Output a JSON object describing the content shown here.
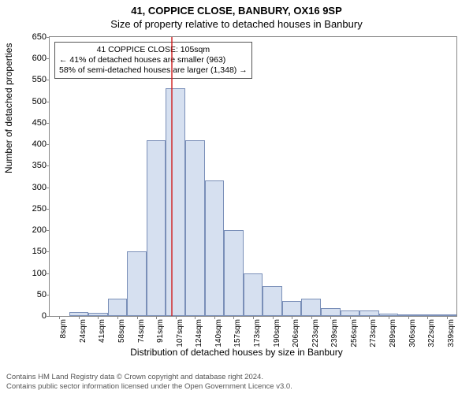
{
  "header": {
    "address": "41, COPPICE CLOSE, BANBURY, OX16 9SP",
    "subtitle": "Size of property relative to detached houses in Banbury"
  },
  "chart": {
    "type": "histogram",
    "ylabel": "Number of detached properties",
    "xlabel": "Distribution of detached houses by size in Banbury",
    "ylim": [
      0,
      650
    ],
    "ytick_step": 50,
    "bar_fill": "#d6e0f0",
    "bar_border": "#7a8fb8",
    "plot_border": "#888888",
    "marker_color": "#d01c1c",
    "marker_value": 105,
    "bin_start": 0,
    "bin_width": 16.6,
    "bins": [
      {
        "label": "8sqm",
        "value": 0
      },
      {
        "label": "24sqm",
        "value": 10
      },
      {
        "label": "41sqm",
        "value": 8
      },
      {
        "label": "58sqm",
        "value": 40
      },
      {
        "label": "74sqm",
        "value": 150
      },
      {
        "label": "91sqm",
        "value": 410
      },
      {
        "label": "107sqm",
        "value": 530
      },
      {
        "label": "124sqm",
        "value": 410
      },
      {
        "label": "140sqm",
        "value": 315
      },
      {
        "label": "157sqm",
        "value": 200
      },
      {
        "label": "173sqm",
        "value": 100
      },
      {
        "label": "190sqm",
        "value": 70
      },
      {
        "label": "206sqm",
        "value": 35
      },
      {
        "label": "223sqm",
        "value": 40
      },
      {
        "label": "239sqm",
        "value": 18
      },
      {
        "label": "256sqm",
        "value": 12
      },
      {
        "label": "273sqm",
        "value": 12
      },
      {
        "label": "289sqm",
        "value": 5
      },
      {
        "label": "306sqm",
        "value": 4
      },
      {
        "label": "322sqm",
        "value": 3
      },
      {
        "label": "339sqm",
        "value": 3
      }
    ]
  },
  "annotation": {
    "line1": "41 COPPICE CLOSE: 105sqm",
    "line2": "← 41% of detached houses are smaller (963)",
    "line3": "58% of semi-detached houses are larger (1,348) →"
  },
  "footer": {
    "line1": "Contains HM Land Registry data © Crown copyright and database right 2024.",
    "line2": "Contains public sector information licensed under the Open Government Licence v3.0."
  }
}
